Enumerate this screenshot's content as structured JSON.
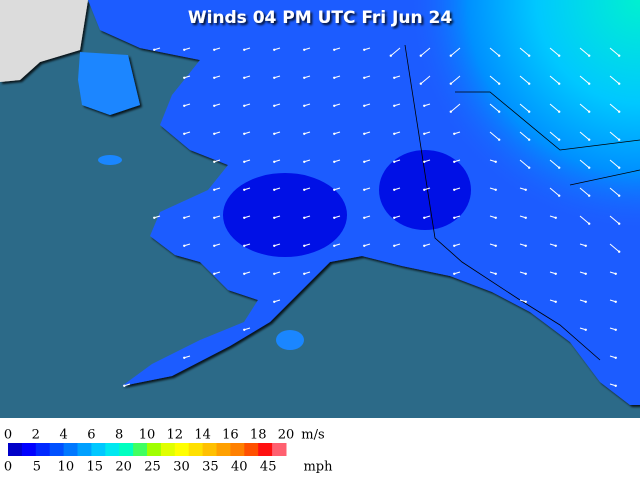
{
  "title": "Winds 04 PM UTC Fri Jun 24",
  "legend": {
    "ms_labels": [
      "0",
      "2",
      "4",
      "6",
      "8",
      "10",
      "12",
      "14",
      "16",
      "18",
      "20"
    ],
    "ms_unit": "m/s",
    "mph_labels": [
      "0",
      "5",
      "10",
      "15",
      "20",
      "25",
      "30",
      "35",
      "40",
      "45"
    ],
    "mph_unit": "mph",
    "colors": [
      "#0000c8",
      "#0000ff",
      "#0028ff",
      "#0050ff",
      "#0078ff",
      "#00a0ff",
      "#00c8ff",
      "#00e8f0",
      "#00ffc0",
      "#40ff60",
      "#a0ff00",
      "#e0ff00",
      "#ffff00",
      "#ffe000",
      "#ffc000",
      "#ffa000",
      "#ff8000",
      "#ff5000",
      "#ff1010",
      "#ff6070"
    ]
  }
}
